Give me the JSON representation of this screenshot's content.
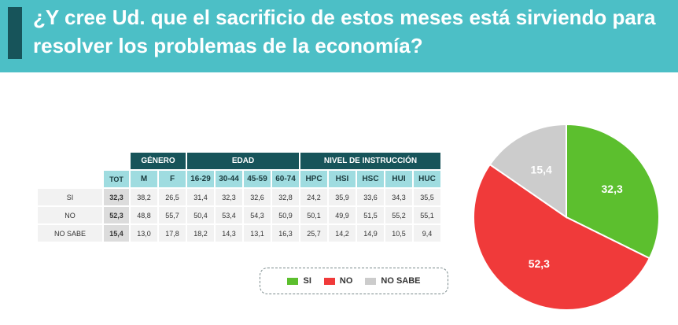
{
  "header": {
    "title": "¿Y cree Ud. que el sacrificio de estos meses está sirviendo para resolver los problemas de la economía?"
  },
  "table": {
    "groups": [
      {
        "label": "GÉNERO",
        "span": 2
      },
      {
        "label": "EDAD",
        "span": 4
      },
      {
        "label": "NIVEL DE INSTRUCCIÓN",
        "span": 5
      }
    ],
    "tot_label": "TOT",
    "columns": [
      "M",
      "F",
      "16-29",
      "30-44",
      "45-59",
      "60-74",
      "HPC",
      "HSI",
      "HSC",
      "HUI",
      "HUC"
    ],
    "rows": [
      {
        "label": "SI",
        "tot": "32,3",
        "values": [
          "38,2",
          "26,5",
          "31,4",
          "32,3",
          "32,6",
          "32,8",
          "24,2",
          "35,9",
          "33,6",
          "34,3",
          "35,5"
        ]
      },
      {
        "label": "NO",
        "tot": "52,3",
        "values": [
          "48,8",
          "55,7",
          "50,4",
          "53,4",
          "54,3",
          "50,9",
          "50,1",
          "49,9",
          "51,5",
          "55,2",
          "55,1"
        ]
      },
      {
        "label": "NO SABE",
        "tot": "15,4",
        "values": [
          "13,0",
          "17,8",
          "18,2",
          "14,3",
          "13,1",
          "16,3",
          "25,7",
          "14,2",
          "14,9",
          "10,5",
          "9,4"
        ]
      }
    ]
  },
  "legend": [
    {
      "label": "SI",
      "color": "#5cbf2e"
    },
    {
      "label": "NO",
      "color": "#f03a3a"
    },
    {
      "label": "NO SABE",
      "color": "#cccccc"
    }
  ],
  "chart_data": {
    "type": "pie",
    "categories": [
      "SI",
      "NO",
      "NO SABE"
    ],
    "values": [
      32.3,
      52.3,
      15.4
    ],
    "labels": [
      "32,3",
      "52,3",
      "15,4"
    ],
    "colors": [
      "#5cbf2e",
      "#f03a3a",
      "#cccccc"
    ],
    "title": ""
  }
}
